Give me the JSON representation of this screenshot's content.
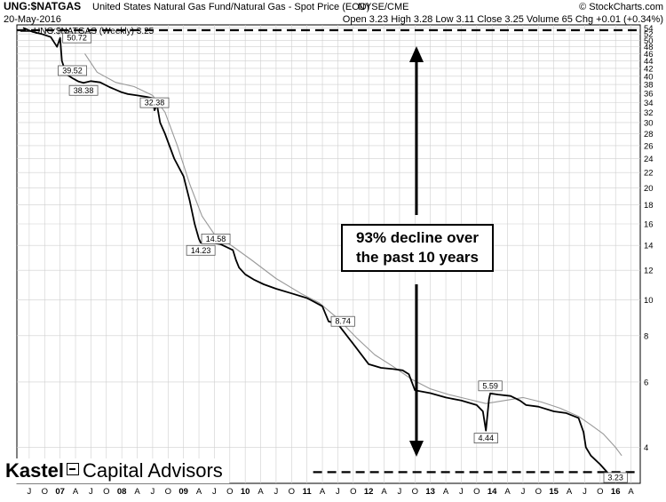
{
  "header": {
    "symbol": "UNG:$NATGAS",
    "description": "United States Natural Gas Fund/Natural Gas - Spot Price (EOD)",
    "exchange": "NYSE/CME",
    "date": "20-May-2016",
    "ohlc": "Open 3.23  High 3.28  Low 3.11  Close 3.25  Volume 65  Chg +0.01 (+0.34%)",
    "source": "© StockCharts.com"
  },
  "legend": {
    "series_label": "UNG:$NATGAS (Weekly) 3.25"
  },
  "callout": {
    "line1": "93% decline over",
    "line2": "the past 10 years"
  },
  "logo": {
    "part1": "Kastel",
    "part2": "Capital Advisors"
  },
  "chart_data": {
    "type": "line",
    "title": "UNG:$NATGAS United States Natural Gas Fund/Natural Gas - Spot Price (EOD)",
    "yscale": "log",
    "ylim": [
      3.2,
      55
    ],
    "y_ticks": [
      4,
      6,
      8,
      10,
      12,
      14,
      16,
      18,
      20,
      22,
      24,
      26,
      28,
      30,
      32,
      34,
      36,
      38,
      40,
      42,
      44,
      46,
      48,
      50,
      52,
      54
    ],
    "x_ticks": [
      {
        "label": "J",
        "t": 2006.5
      },
      {
        "label": "O",
        "t": 2006.75
      },
      {
        "label": "07",
        "t": 2007.0
      },
      {
        "label": "A",
        "t": 2007.25
      },
      {
        "label": "J",
        "t": 2007.5
      },
      {
        "label": "O",
        "t": 2007.75
      },
      {
        "label": "08",
        "t": 2008.0
      },
      {
        "label": "A",
        "t": 2008.25
      },
      {
        "label": "J",
        "t": 2008.5
      },
      {
        "label": "O",
        "t": 2008.75
      },
      {
        "label": "09",
        "t": 2009.0
      },
      {
        "label": "A",
        "t": 2009.25
      },
      {
        "label": "J",
        "t": 2009.5
      },
      {
        "label": "O",
        "t": 2009.75
      },
      {
        "label": "10",
        "t": 2010.0
      },
      {
        "label": "A",
        "t": 2010.25
      },
      {
        "label": "J",
        "t": 2010.5
      },
      {
        "label": "O",
        "t": 2010.75
      },
      {
        "label": "11",
        "t": 2011.0
      },
      {
        "label": "A",
        "t": 2011.25
      },
      {
        "label": "J",
        "t": 2011.5
      },
      {
        "label": "O",
        "t": 2011.75
      },
      {
        "label": "12",
        "t": 2012.0
      },
      {
        "label": "A",
        "t": 2012.25
      },
      {
        "label": "J",
        "t": 2012.5
      },
      {
        "label": "O",
        "t": 2012.75
      },
      {
        "label": "13",
        "t": 2013.0
      },
      {
        "label": "A",
        "t": 2013.25
      },
      {
        "label": "J",
        "t": 2013.5
      },
      {
        "label": "O",
        "t": 2013.75
      },
      {
        "label": "14",
        "t": 2014.0
      },
      {
        "label": "A",
        "t": 2014.25
      },
      {
        "label": "J",
        "t": 2014.5
      },
      {
        "label": "O",
        "t": 2014.75
      },
      {
        "label": "15",
        "t": 2015.0
      },
      {
        "label": "A",
        "t": 2015.25
      },
      {
        "label": "J",
        "t": 2015.5
      },
      {
        "label": "O",
        "t": 2015.75
      },
      {
        "label": "16",
        "t": 2016.0
      },
      {
        "label": "A",
        "t": 2016.25
      }
    ],
    "grid": true,
    "series": [
      {
        "name": "UNG:$NATGAS (Weekly)",
        "color": "#000000",
        "points": [
          [
            2006.4,
            54
          ],
          [
            2006.55,
            52.7
          ],
          [
            2006.7,
            52
          ],
          [
            2006.85,
            51
          ],
          [
            2006.95,
            48
          ],
          [
            2007.0,
            50.72
          ],
          [
            2007.03,
            44
          ],
          [
            2007.1,
            40.5
          ],
          [
            2007.2,
            39.52
          ],
          [
            2007.3,
            38.7
          ],
          [
            2007.38,
            38.38
          ],
          [
            2007.5,
            38.8
          ],
          [
            2007.65,
            38.5
          ],
          [
            2007.8,
            37.4
          ],
          [
            2007.95,
            36.5
          ],
          [
            2008.0,
            36.2
          ],
          [
            2008.1,
            35.8
          ],
          [
            2008.25,
            35.5
          ],
          [
            2008.4,
            35.2
          ],
          [
            2008.5,
            34.9
          ],
          [
            2008.53,
            32.38
          ],
          [
            2008.57,
            33.5
          ],
          [
            2008.62,
            30
          ],
          [
            2008.7,
            28
          ],
          [
            2008.85,
            24
          ],
          [
            2009.0,
            21.5
          ],
          [
            2009.1,
            18.5
          ],
          [
            2009.18,
            16
          ],
          [
            2009.25,
            14.58
          ],
          [
            2009.28,
            14.23
          ],
          [
            2009.4,
            14.3
          ],
          [
            2009.6,
            14.1
          ],
          [
            2009.8,
            13.6
          ],
          [
            2009.85,
            12.8
          ],
          [
            2009.9,
            12.2
          ],
          [
            2010.0,
            11.7
          ],
          [
            2010.15,
            11.3
          ],
          [
            2010.3,
            11
          ],
          [
            2010.5,
            10.7
          ],
          [
            2010.75,
            10.4
          ],
          [
            2011.0,
            10.1
          ],
          [
            2011.1,
            9.9
          ],
          [
            2011.25,
            9.6
          ],
          [
            2011.35,
            8.74
          ],
          [
            2011.5,
            8.6
          ],
          [
            2011.75,
            7.6
          ],
          [
            2012.0,
            6.7
          ],
          [
            2012.2,
            6.55
          ],
          [
            2012.4,
            6.5
          ],
          [
            2012.55,
            6.45
          ],
          [
            2012.65,
            6.3
          ],
          [
            2012.75,
            5.7
          ],
          [
            2013.0,
            5.6
          ],
          [
            2013.25,
            5.45
          ],
          [
            2013.5,
            5.35
          ],
          [
            2013.75,
            5.2
          ],
          [
            2013.85,
            5.0
          ],
          [
            2013.9,
            4.44
          ],
          [
            2013.95,
            5.4
          ],
          [
            2013.97,
            5.59
          ],
          [
            2014.1,
            5.55
          ],
          [
            2014.3,
            5.5
          ],
          [
            2014.45,
            5.35
          ],
          [
            2014.55,
            5.2
          ],
          [
            2014.75,
            5.15
          ],
          [
            2015.0,
            5.0
          ],
          [
            2015.2,
            4.95
          ],
          [
            2015.4,
            4.8
          ],
          [
            2015.48,
            4.4
          ],
          [
            2015.52,
            4.0
          ],
          [
            2015.6,
            3.8
          ],
          [
            2015.75,
            3.6
          ],
          [
            2015.85,
            3.45
          ],
          [
            2016.0,
            3.23
          ],
          [
            2016.05,
            3.25
          ]
        ]
      },
      {
        "name": "Moving average",
        "color": "#999999",
        "points": [
          [
            2007.4,
            46
          ],
          [
            2007.6,
            41
          ],
          [
            2007.9,
            38.5
          ],
          [
            2008.2,
            37.5
          ],
          [
            2008.5,
            35.5
          ],
          [
            2008.7,
            32
          ],
          [
            2008.9,
            26
          ],
          [
            2009.1,
            20.5
          ],
          [
            2009.3,
            16.8
          ],
          [
            2009.5,
            15
          ],
          [
            2009.8,
            13.9
          ],
          [
            2010.1,
            12.8
          ],
          [
            2010.5,
            11.4
          ],
          [
            2010.9,
            10.4
          ],
          [
            2011.2,
            9.8
          ],
          [
            2011.5,
            8.9
          ],
          [
            2011.8,
            7.9
          ],
          [
            2012.1,
            7.1
          ],
          [
            2012.4,
            6.6
          ],
          [
            2012.7,
            6.1
          ],
          [
            2013.0,
            5.75
          ],
          [
            2013.3,
            5.55
          ],
          [
            2013.6,
            5.4
          ],
          [
            2013.9,
            5.25
          ],
          [
            2014.2,
            5.35
          ],
          [
            2014.5,
            5.45
          ],
          [
            2014.8,
            5.3
          ],
          [
            2015.1,
            5.1
          ],
          [
            2015.4,
            4.85
          ],
          [
            2015.6,
            4.6
          ],
          [
            2015.8,
            4.35
          ],
          [
            2016.0,
            4.0
          ],
          [
            2016.1,
            3.8
          ]
        ]
      }
    ],
    "annotations": [
      {
        "label": "50.72",
        "t": 2007.0,
        "v": 50.72,
        "pos": "right"
      },
      {
        "label": "39.52",
        "t": 2007.2,
        "v": 39.52,
        "pos": "above"
      },
      {
        "label": "38.38",
        "t": 2007.38,
        "v": 38.38,
        "pos": "below"
      },
      {
        "label": "32.38",
        "t": 2008.53,
        "v": 32.38,
        "pos": "above"
      },
      {
        "label": "14.58",
        "t": 2009.25,
        "v": 14.58,
        "pos": "right"
      },
      {
        "label": "14.23",
        "t": 2009.28,
        "v": 14.23,
        "pos": "below"
      },
      {
        "label": "8.74",
        "t": 2011.35,
        "v": 8.74,
        "pos": "right"
      },
      {
        "label": "5.59",
        "t": 2013.97,
        "v": 5.59,
        "pos": "above"
      },
      {
        "label": "4.44",
        "t": 2013.9,
        "v": 4.44,
        "pos": "below"
      },
      {
        "label": "3.23",
        "t": 2016.0,
        "v": 3.23,
        "pos": "below"
      }
    ],
    "reference_lines": [
      {
        "v": 53.2,
        "from": 2006.3,
        "to": 2016.4,
        "style": "dashed"
      },
      {
        "v": 3.43,
        "from": 2011.1,
        "to": 2016.4,
        "style": "dashed"
      }
    ]
  }
}
